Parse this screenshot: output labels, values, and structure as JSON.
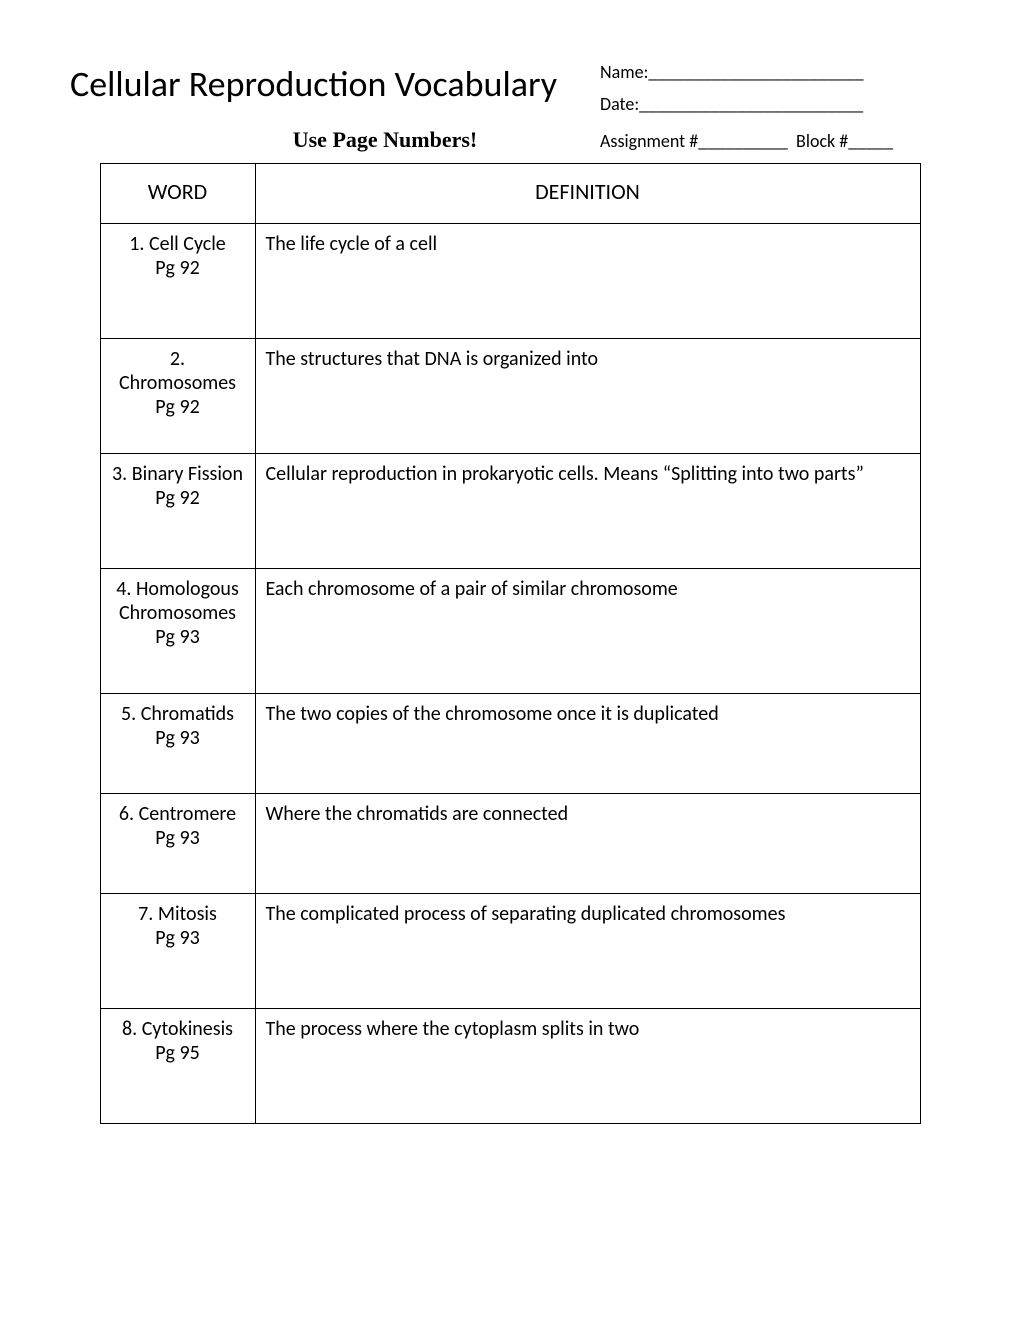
{
  "title": "Cellular Reproduction Vocabulary",
  "subtitle": "Use Page Numbers!",
  "meta": {
    "name_label": "Name:________________________",
    "date_label": "Date:_________________________",
    "assignment_label": "Assignment #__________  Block #_____"
  },
  "columns": {
    "word": "WORD",
    "definition": "DEFINITION"
  },
  "rows": [
    {
      "num": "1.",
      "term": "Cell Cycle",
      "page": "Pg 92",
      "definition": "The life cycle of a cell",
      "inline_num_term": true,
      "word_pad": "sm",
      "height": "row"
    },
    {
      "num": "2.",
      "term": "Chromosomes",
      "page": "Pg 92",
      "definition": "The structures that DNA is organized into",
      "inline_num_term": false,
      "word_pad": "sm",
      "height": "row"
    },
    {
      "num": "3.",
      "term": "Binary Fission",
      "page": "Pg 92",
      "definition": "Cellular reproduction in prokaryotic cells.  Means “Splitting into two parts”",
      "inline_num_term": true,
      "word_pad": "md",
      "height": "row"
    },
    {
      "num": "4.",
      "term": "Homologous Chromosomes",
      "page": "Pg 93",
      "definition": "Each chromosome of a pair of similar chromosome",
      "inline_num_term": true,
      "word_pad": "md",
      "height": "row-tall"
    },
    {
      "num": "5.",
      "term": "Chromatids",
      "page": "Pg 93",
      "definition": "The two copies of the chromosome once it is duplicated",
      "inline_num_term": true,
      "word_pad": "md",
      "height": "row-short"
    },
    {
      "num": "6.",
      "term": "Centromere",
      "page": "Pg 93",
      "definition": "Where the chromatids are connected",
      "inline_num_term": true,
      "word_pad": "md",
      "height": "row-short"
    },
    {
      "num": "7.",
      "term": "Mitosis",
      "page": "Pg 93",
      "definition": "The complicated process of separating duplicated chromosomes",
      "inline_num_term": true,
      "word_pad": "sm",
      "height": "row"
    },
    {
      "num": "8.",
      "term": "Cytokinesis",
      "page": "Pg 95",
      "definition": "The process where the cytoplasm splits in two",
      "inline_num_term": true,
      "word_pad": "sm",
      "height": "row"
    }
  ]
}
